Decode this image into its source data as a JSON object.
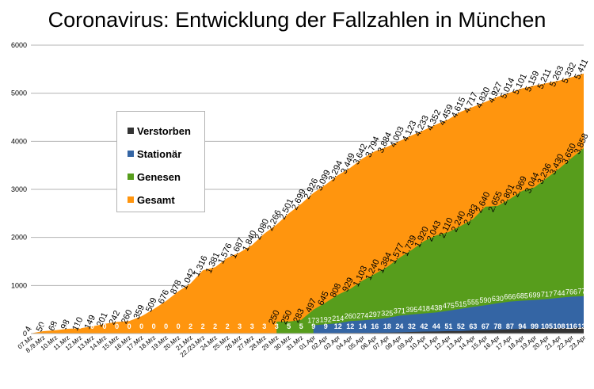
{
  "chart_data": {
    "type": "area",
    "title": "Coronavirus: Entwicklung der Fallzahlen in München",
    "ylim": [
      0,
      6000
    ],
    "yticks": [
      0,
      1000,
      2000,
      3000,
      4000,
      5000,
      6000
    ],
    "grid": true,
    "legend_position": "left",
    "x": [
      "07.Mz",
      "08/09.Mrz",
      "10.Mrz",
      "11.Mrz",
      "12.Mrz",
      "13.Mrz",
      "14.Mrz",
      "15.Mrz",
      "16.Mrz",
      "17.Mrz",
      "18.Mrz",
      "19.Mrz",
      "20.Mrz",
      "21.Mrz",
      "22./23.Mrz",
      "24.Mrz",
      "25.Mrz",
      "26.Mrz",
      "27.Mrz",
      "28.Mrz",
      "29.Mrz",
      "30.Mrz",
      "31.Mrz",
      "01.Apr",
      "02.Apr",
      "03.Apr",
      "04.Apr",
      "05.Apr",
      "06.Apr",
      "07.Apr",
      "08.Apr",
      "09.Apr",
      "10.Apr",
      "11.Apr",
      "12.Apr",
      "13.Apr",
      "14.Apr",
      "15.Apr",
      "16.Apr",
      "17.Apr",
      "18.Apr",
      "19.Apr",
      "20.Apr",
      "21.Apr",
      "22.Apr",
      "23.Apr"
    ],
    "x_labels_shown": [
      "07.Mz",
      "8./9.Mrz",
      "10.Mrz",
      "11.Mrz",
      "12.Mrz",
      "13.Mrz",
      "14.Mrz",
      "15.Mrz",
      "16.Mrz",
      "17.Mrz",
      "18.Mrz",
      "19.Mrz",
      "20.Mrz",
      "21.Mrz",
      "22./23.Mrz",
      "24.Mrz",
      "25.Mrz",
      "26.Mrz",
      "27.Mrz",
      "28.Mrz",
      "29.Mrz",
      "30.Mrz",
      "31.Mrz",
      "01.Apr",
      "02.Apr",
      "03.Apr",
      "04.Apr",
      "05.Apr",
      "06.Apr",
      "07.Apr",
      "08.Apr",
      "09.Apr",
      "10.Apr",
      "11.Apr",
      "12.Apr",
      "13.Apr",
      "14.Apr",
      "15.Apr",
      "16.Apr",
      "17.Apr",
      "18.Apr",
      "19.Apr",
      "20.Apr",
      "21.Apr",
      "22.Apr",
      "23.Apr"
    ],
    "series": [
      {
        "name": "Gesamt",
        "color": "#ff950e",
        "values": [
          4,
          50,
          68,
          98,
          110,
          149,
          201,
          242,
          260,
          359,
          509,
          676,
          878,
          1042,
          1316,
          1381,
          1576,
          1687,
          1840,
          2080,
          2266,
          2501,
          2699,
          2926,
          3099,
          3294,
          3449,
          3642,
          3794,
          3884,
          4003,
          4123,
          4233,
          4352,
          4459,
          4615,
          4717,
          4820,
          4927,
          5014,
          5101,
          5159,
          5211,
          5263,
          5332,
          5411
        ]
      },
      {
        "name": "Genesen",
        "color": "#579d1c",
        "values": [
          null,
          null,
          null,
          null,
          null,
          null,
          null,
          null,
          null,
          null,
          null,
          null,
          null,
          null,
          null,
          null,
          null,
          null,
          null,
          null,
          250,
          250,
          283,
          497,
          645,
          808,
          929,
          1103,
          1240,
          1384,
          1577,
          1739,
          1920,
          2043,
          2110,
          2240,
          2383,
          2640,
          2655,
          2801,
          2969,
          3044,
          3236,
          3430,
          3650,
          3858
        ]
      },
      {
        "name": "Stationär",
        "color": "#3465a4",
        "values": [
          null,
          null,
          null,
          null,
          null,
          null,
          null,
          null,
          null,
          null,
          null,
          null,
          null,
          null,
          null,
          null,
          null,
          null,
          null,
          null,
          null,
          null,
          null,
          173,
          192,
          214,
          260,
          274,
          297,
          325,
          371,
          395,
          418,
          438,
          475,
          515,
          555,
          590,
          630,
          666,
          685,
          699,
          717,
          744,
          766,
          779
        ]
      },
      {
        "name": "Verstorben",
        "color": "#333333",
        "values": [
          0,
          0,
          0,
          0,
          0,
          0,
          0,
          0,
          0,
          0,
          0,
          0,
          0,
          2,
          2,
          2,
          2,
          3,
          3,
          3,
          3,
          5,
          5,
          9,
          9,
          12,
          12,
          14,
          16,
          18,
          24,
          32,
          42,
          44,
          51,
          52,
          63,
          67,
          78,
          87,
          94,
          99,
          105,
          108,
          116,
          130
        ]
      }
    ]
  }
}
